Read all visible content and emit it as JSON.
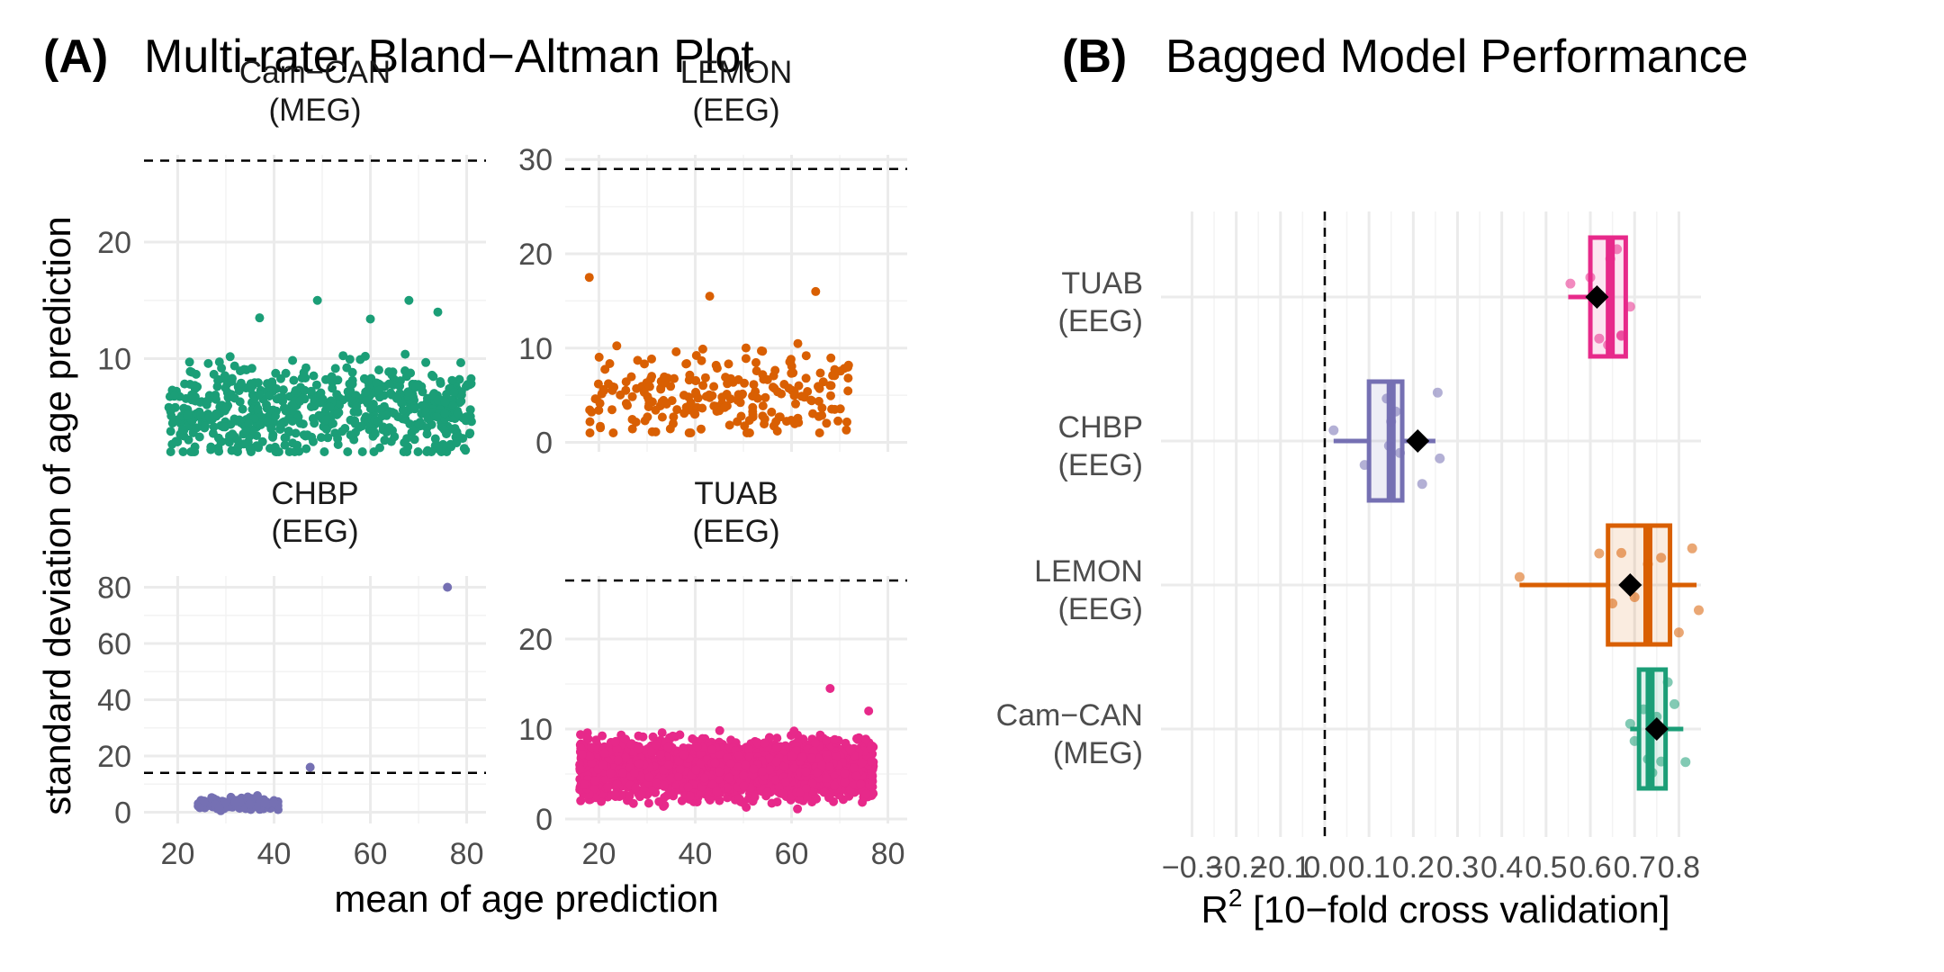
{
  "panel_a": {
    "label": "(A)",
    "title": "Multi-rater Bland−Altman Plot",
    "xlabel": "mean of age prediction",
    "ylabel": "standard deviation of age prediction"
  },
  "panel_b": {
    "label": "(B)",
    "title": "Bagged Model Performance",
    "xlabel_prefix": "R",
    "xlabel_sup": "2",
    "xlabel_suffix": " [10−fold cross validation]"
  },
  "colors": {
    "Cam-CAN": "#1b9e77",
    "LEMON": "#d95f02",
    "CHBP": "#7570b3",
    "TUAB": "#e7298a"
  },
  "chart_data": [
    {
      "type": "scatter",
      "title": "Multi-rater Bland−Altman Plot",
      "xlabel": "mean of age prediction",
      "ylabel": "standard deviation of age prediction",
      "facets": [
        {
          "key": "camcan",
          "name": "Cam-CAN",
          "strip": [
            "Cam−CAN",
            "(MEG)"
          ],
          "color": "#1b9e77",
          "xlim": [
            13,
            84
          ],
          "ylim": [
            2,
            27.5
          ],
          "yticks": [
            10,
            20
          ],
          "ytick_labels": [
            "10",
            "20"
          ],
          "threshold": 27,
          "cloud": {
            "n": 640,
            "x_range": [
              18,
              81
            ],
            "y_min": 2,
            "y_base": 5.5,
            "y_spread": 3.5,
            "y_max": 15
          },
          "outliers": [
            [
              49,
              15
            ],
            [
              68,
              15
            ],
            [
              74,
              14
            ],
            [
              37,
              13.5
            ],
            [
              60,
              13.4
            ]
          ]
        },
        {
          "key": "lemon",
          "name": "LEMON",
          "strip": [
            "LEMON",
            "(EEG)"
          ],
          "color": "#d95f02",
          "xlim": [
            13,
            84
          ],
          "ylim": [
            -1,
            30.5
          ],
          "yticks": [
            0,
            10,
            20,
            30
          ],
          "ytick_labels": [
            "0",
            "10",
            "20",
            "30"
          ],
          "threshold": 29,
          "cloud": {
            "n": 230,
            "x_range": [
              18,
              72
            ],
            "y_min": 1,
            "y_base": 5,
            "y_spread": 4,
            "y_max": 16
          },
          "outliers": [
            [
              18,
              17.5
            ],
            [
              65,
              16
            ],
            [
              43,
              15.5
            ]
          ]
        },
        {
          "key": "chbp",
          "name": "CHBP",
          "strip": [
            "CHBP",
            "(EEG)"
          ],
          "color": "#7570b3",
          "xlim": [
            13,
            84
          ],
          "ylim": [
            -4,
            84
          ],
          "yticks": [
            0,
            20,
            40,
            60,
            80
          ],
          "ytick_labels": [
            "0",
            "20",
            "40",
            "60",
            "80"
          ],
          "threshold": 14,
          "cloud": {
            "n": 160,
            "x_range": [
              24,
              41
            ],
            "y_min": 0.5,
            "y_base": 3,
            "y_spread": 2,
            "y_max": 8
          },
          "outliers": [
            [
              76,
              80
            ],
            [
              47.5,
              16
            ]
          ]
        },
        {
          "key": "tuab",
          "name": "TUAB",
          "strip": [
            "TUAB",
            "(EEG)"
          ],
          "color": "#e7298a",
          "xlim": [
            13,
            84
          ],
          "ylim": [
            -0.5,
            27
          ],
          "yticks": [
            0,
            10,
            20
          ],
          "ytick_labels": [
            "0",
            "10",
            "20"
          ],
          "threshold": 26.5,
          "cloud": {
            "n": 2400,
            "x_range": [
              16,
              77
            ],
            "y_min": 0.3,
            "y_base": 5.5,
            "y_spread": 2.8,
            "y_max": 15
          },
          "outliers": [
            [
              76,
              12
            ],
            [
              68,
              14.5
            ]
          ]
        }
      ],
      "xticks": [
        20,
        40,
        60,
        80
      ],
      "xtick_labels": [
        "20",
        "40",
        "60",
        "80"
      ]
    },
    {
      "type": "box",
      "title": "Bagged Model Performance",
      "xlabel": "R2 [10−fold cross validation]",
      "xlim": [
        -0.37,
        0.85
      ],
      "xticks": [
        -0.3,
        -0.2,
        -0.1,
        0.0,
        0.1,
        0.2,
        0.3,
        0.4,
        0.5,
        0.6,
        0.7,
        0.8
      ],
      "xtick_labels": [
        "−0.3",
        "−0.2",
        "−0.1",
        "0.0",
        "0.1",
        "0.2",
        "0.3",
        "0.4",
        "0.5",
        "0.6",
        "0.7",
        "0.8"
      ],
      "reference_line": 0.0,
      "series": [
        {
          "name": "TUAB",
          "label": [
            "TUAB",
            "(EEG)"
          ],
          "color": "#e7298a",
          "min": 0.55,
          "q1": 0.6,
          "median": 0.645,
          "q3": 0.68,
          "max": 0.68,
          "mean": 0.615,
          "points": [
            0.555,
            0.6,
            0.61,
            0.62,
            0.64,
            0.645,
            0.66,
            0.67,
            0.67,
            0.69
          ]
        },
        {
          "name": "CHBP",
          "label": [
            "CHBP",
            "(EEG)"
          ],
          "color": "#7570b3",
          "min": 0.02,
          "q1": 0.1,
          "median": 0.15,
          "q3": 0.175,
          "max": 0.25,
          "mean": 0.21,
          "points": [
            0.02,
            0.09,
            0.14,
            0.145,
            0.15,
            0.16,
            0.17,
            0.22,
            0.255,
            0.26
          ]
        },
        {
          "name": "LEMON",
          "label": [
            "LEMON",
            "(EEG)"
          ],
          "color": "#d95f02",
          "min": 0.44,
          "q1": 0.64,
          "median": 0.73,
          "q3": 0.78,
          "max": 0.84,
          "mean": 0.69,
          "points": [
            0.44,
            0.62,
            0.65,
            0.67,
            0.7,
            0.73,
            0.76,
            0.8,
            0.83,
            0.845
          ]
        },
        {
          "name": "Cam-CAN",
          "label": [
            "Cam−CAN",
            "(MEG)"
          ],
          "color": "#1b9e77",
          "min": 0.69,
          "q1": 0.71,
          "median": 0.735,
          "q3": 0.77,
          "max": 0.81,
          "mean": 0.75,
          "points": [
            0.69,
            0.7,
            0.72,
            0.73,
            0.74,
            0.75,
            0.76,
            0.775,
            0.79,
            0.815
          ]
        }
      ]
    }
  ]
}
